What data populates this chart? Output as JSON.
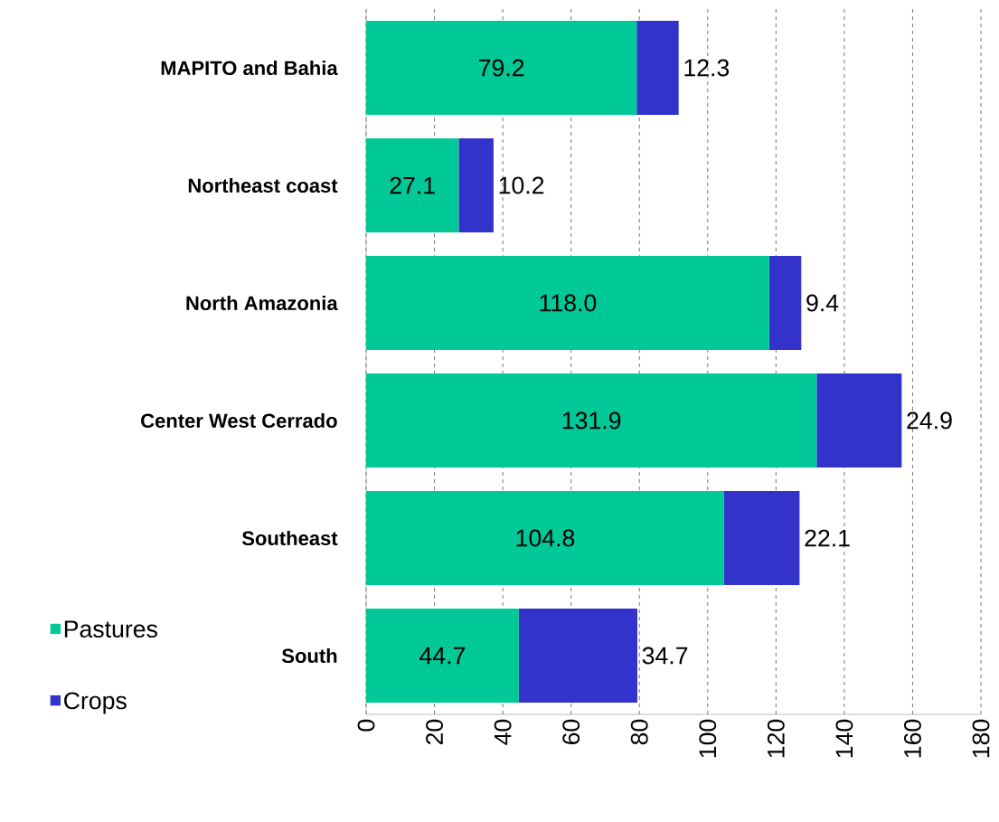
{
  "chart_data": {
    "type": "bar",
    "orientation": "horizontal",
    "stacked": true,
    "categories": [
      "MAPITO and Bahia",
      "Northeast coast",
      "North Amazonia",
      "Center West Cerrado",
      "Southeast",
      "South"
    ],
    "series": [
      {
        "name": "Pastures",
        "color": "#00c896",
        "values": [
          79.2,
          27.1,
          118.0,
          131.9,
          104.8,
          44.7
        ],
        "value_labels": [
          "79.2",
          "27.1",
          "118.0",
          "131.9",
          "104.8",
          "44.7"
        ]
      },
      {
        "name": "Crops",
        "color": "#3333cc",
        "values": [
          12.3,
          10.2,
          9.4,
          24.9,
          22.1,
          34.7
        ],
        "value_labels": [
          "12.3",
          "10.2",
          "9.4",
          "24.9",
          "22.1",
          "34.7"
        ]
      }
    ],
    "xlim": [
      0,
      180
    ],
    "xticks": [
      0,
      20,
      40,
      60,
      80,
      100,
      120,
      140,
      160,
      180
    ],
    "grid": "x",
    "legend": "bottom left"
  }
}
